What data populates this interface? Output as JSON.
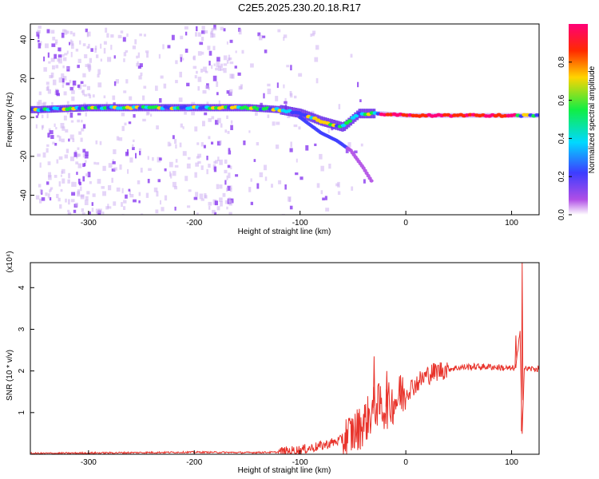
{
  "title": "C2E5.2025.230.20.18.R17",
  "chart_data": [
    {
      "type": "heatmap",
      "title": "C2E5.2025.230.20.18.R17",
      "xlabel": "Height of straight line (km)",
      "ylabel": "Frequency (Hz)",
      "xlim": [
        -355,
        126
      ],
      "ylim": [
        -50,
        48
      ],
      "xticks": [
        -300,
        -200,
        -100,
        0,
        100
      ],
      "yticks": [
        -40,
        -20,
        0,
        20,
        40
      ],
      "colorbar": {
        "label": "Normalized spectral amplitude",
        "range": [
          0,
          1
        ],
        "ticks": [
          "0.0",
          "0.2",
          "0.4",
          "0.6",
          "0.8"
        ],
        "colors": [
          "#ffffff",
          "#b04ee6",
          "#3d3dff",
          "#00d9ff",
          "#11ee44",
          "#ffd400",
          "#ff2a00",
          "#ff0077"
        ]
      },
      "ridge": [
        {
          "x": -350,
          "f": 4
        },
        {
          "x": -300,
          "f": 5
        },
        {
          "x": -250,
          "f": 5
        },
        {
          "x": -200,
          "f": 5
        },
        {
          "x": -150,
          "f": 5
        },
        {
          "x": -120,
          "f": 4
        },
        {
          "x": -100,
          "f": 2
        },
        {
          "x": -80,
          "f": -2
        },
        {
          "x": -60,
          "f": -5
        },
        {
          "x": -45,
          "f": 2
        },
        {
          "x": -25,
          "f": 2
        },
        {
          "x": 0,
          "f": 1
        },
        {
          "x": 50,
          "f": 1
        },
        {
          "x": 100,
          "f": 1
        },
        {
          "x": 126,
          "f": 1
        }
      ],
      "branch": [
        {
          "x": -100,
          "f": 0
        },
        {
          "x": -80,
          "f": -8
        },
        {
          "x": -65,
          "f": -12
        },
        {
          "x": -52,
          "f": -17
        },
        {
          "x": -40,
          "f": -26
        },
        {
          "x": -32,
          "f": -33
        }
      ]
    },
    {
      "type": "line",
      "xlabel": "Height of straight line (km)",
      "ylabel": "SNR (10 * v/v)",
      "multiplier": "(x10⁴)",
      "xlim": [
        -355,
        126
      ],
      "ylim": [
        0,
        4.6
      ],
      "xticks": [
        -300,
        -200,
        -100,
        0,
        100
      ],
      "yticks": [
        1,
        2,
        3,
        4
      ],
      "color": "#e8322a",
      "x": [
        -355,
        -300,
        -250,
        -200,
        -150,
        -120,
        -100,
        -80,
        -60,
        -45,
        -35,
        -28,
        -20,
        -10,
        0,
        10,
        20,
        30,
        40,
        50,
        60,
        70,
        80,
        90,
        100,
        104,
        108,
        110,
        112,
        126
      ],
      "values": [
        0.02,
        0.03,
        0.04,
        0.05,
        0.04,
        0.05,
        0.1,
        0.2,
        0.35,
        0.6,
        0.9,
        1.2,
        1.1,
        1.3,
        1.5,
        1.7,
        1.9,
        2.0,
        2.05,
        2.08,
        2.1,
        2.1,
        2.1,
        2.08,
        2.05,
        2.1,
        2.9,
        0.55,
        2.05,
        2.05
      ],
      "spikes": [
        {
          "x": -30,
          "y": 2.35
        },
        {
          "x": -18,
          "y": 2.0
        },
        {
          "x": -5,
          "y": 1.9
        },
        {
          "x": 104,
          "y": 2.85
        },
        {
          "x": 110,
          "y": 4.6
        }
      ]
    }
  ]
}
